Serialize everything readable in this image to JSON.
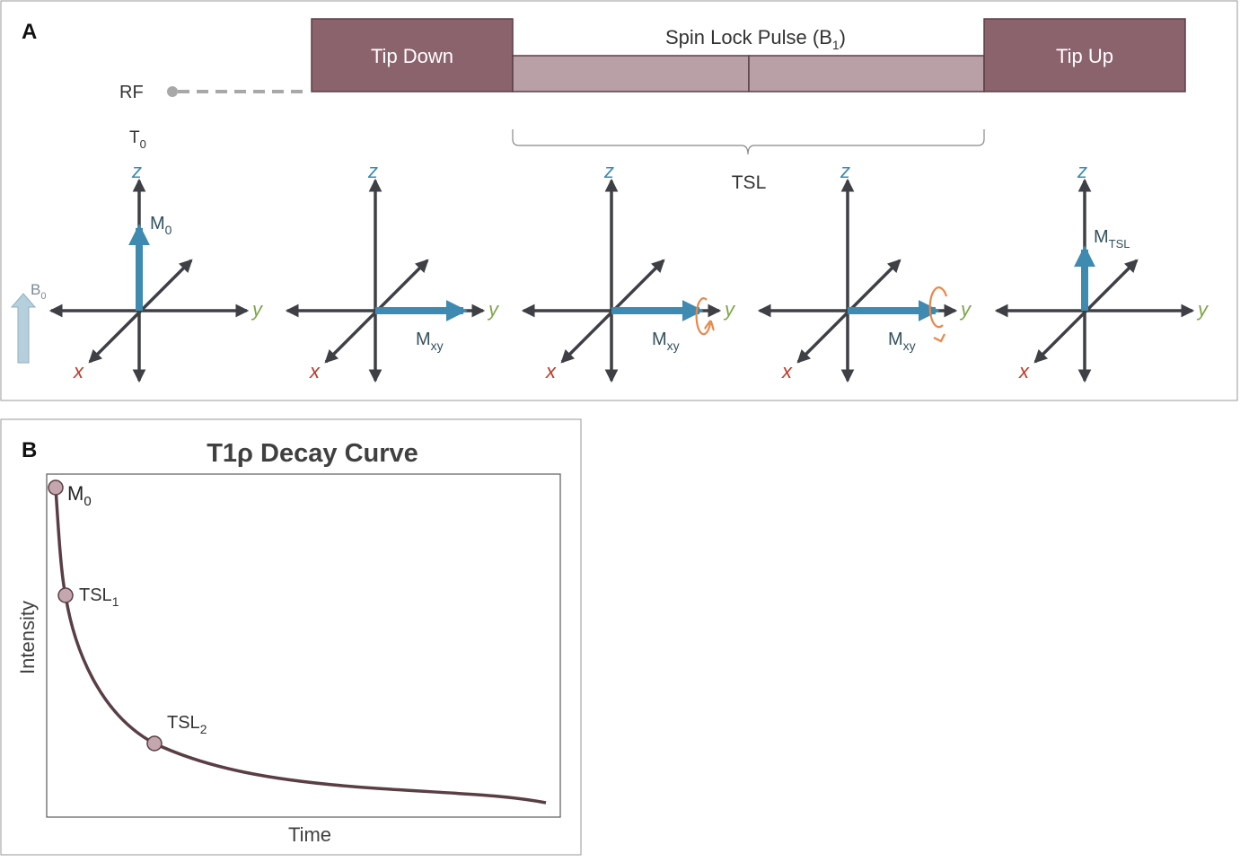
{
  "panelA": {
    "label": "A",
    "rf_label": "RF",
    "t0_label": "T",
    "t0_sub": "0",
    "tip_down_label": "Tip Down",
    "spin_lock_label": "Spin Lock Pulse (B",
    "spin_lock_sub": "1",
    "spin_lock_close": ")",
    "tip_up_label": "Tip Up",
    "tsl_label": "TSL",
    "b0_label": "B",
    "b0_sub": "0",
    "axes": {
      "z": "z",
      "y": "y",
      "x": "x"
    },
    "diagrams": [
      {
        "vector_label": "M",
        "vector_sub": "0"
      },
      {
        "vector_label": "M",
        "vector_sub": "xy"
      },
      {
        "vector_label": "M",
        "vector_sub": "xy"
      },
      {
        "vector_label": "M",
        "vector_sub": "xy"
      },
      {
        "vector_label": "M",
        "vector_sub": "TSL"
      }
    ],
    "colors": {
      "pulse_dark": "#8B636D",
      "pulse_light": "#B8A0A6",
      "vector": "#3E8AB0",
      "axis": "#3F4045",
      "z_label": "#3E8AB0",
      "y_label": "#7FA64B",
      "x_label": "#C0392B",
      "precession": "#E8874A"
    }
  },
  "panelB": {
    "label": "B",
    "title": "T1ρ Decay Curve",
    "xlabel": "Time",
    "ylabel": "Intensity",
    "point_labels": [
      {
        "main": "M",
        "sub": "0"
      },
      {
        "main": "TSL",
        "sub": "1"
      },
      {
        "main": "TSL",
        "sub": "2"
      }
    ],
    "colors": {
      "curve": "#5A3E45",
      "marker": "#C4A7AE"
    }
  }
}
